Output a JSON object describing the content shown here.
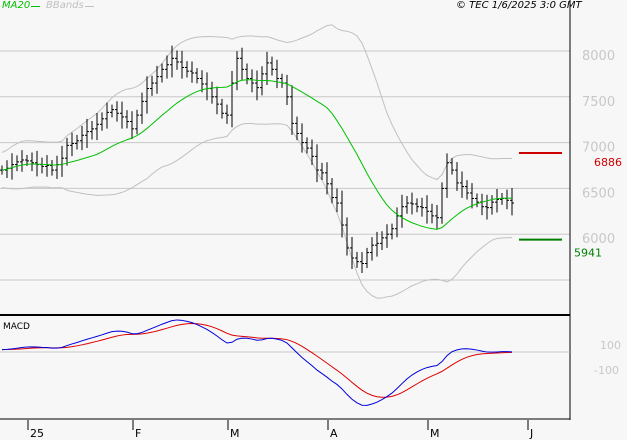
{
  "legend": {
    "ma_label": "MA20",
    "bb_label": "BBands",
    "ma_color": "#00c000",
    "bb_color": "#c0c0c0"
  },
  "copyright": "© TEC 1/6/2025 3:0 GMT",
  "macd_label": "MACD",
  "chart_data": {
    "type": "ohlc",
    "y_ticks": [
      {
        "v": 8000,
        "label": "8000"
      },
      {
        "v": 7500,
        "label": "7500"
      },
      {
        "v": 7000,
        "label": "7000"
      },
      {
        "v": 6500,
        "label": "6500"
      },
      {
        "v": 6000,
        "label": "6000"
      },
      {
        "v": 5500,
        "label": ""
      }
    ],
    "ylim": [
      5250,
      8550
    ],
    "x_ticks": [
      {
        "i": 5,
        "label": "25"
      },
      {
        "i": 26,
        "label": "F"
      },
      {
        "i": 45,
        "label": "M"
      },
      {
        "i": 65,
        "label": "A"
      },
      {
        "i": 85,
        "label": "M"
      },
      {
        "i": 105,
        "label": "J"
      }
    ],
    "close": [
      6700,
      6720,
      6760,
      6790,
      6810,
      6800,
      6780,
      6760,
      6740,
      6750,
      6700,
      6760,
      6830,
      6970,
      6990,
      7020,
      7080,
      7120,
      7150,
      7200,
      7260,
      7330,
      7360,
      7320,
      7280,
      7230,
      7150,
      7300,
      7450,
      7590,
      7650,
      7720,
      7800,
      7850,
      7920,
      7880,
      7820,
      7780,
      7760,
      7700,
      7640,
      7590,
      7500,
      7420,
      7320,
      7300,
      7650,
      7920,
      7800,
      7700,
      7650,
      7600,
      7750,
      7870,
      7800,
      7700,
      7650,
      7500,
      7210,
      7100,
      7000,
      6940,
      6850,
      6700,
      6670,
      6550,
      6400,
      6340,
      6100,
      5850,
      5740,
      5700,
      5680,
      5800,
      5880,
      5900,
      5960,
      6000,
      6060,
      6200,
      6300,
      6340,
      6330,
      6300,
      6290,
      6250,
      6200,
      6180,
      6500,
      6780,
      6700,
      6560,
      6520,
      6450,
      6390,
      6350,
      6300,
      6290,
      6350,
      6380,
      6390,
      6370,
      6340
    ],
    "levels": [
      {
        "value": 6886,
        "label": "6886",
        "color": "#cc0000"
      },
      {
        "value": 5941,
        "label": "5941",
        "color": "#008000"
      }
    ],
    "macd": {
      "zero": 0,
      "ticks": [
        {
          "v": 100,
          "label": "100"
        },
        {
          "v": -100,
          "label": "-100"
        }
      ],
      "macd_color": "#0000dd",
      "signal_color": "#dd0000"
    }
  }
}
